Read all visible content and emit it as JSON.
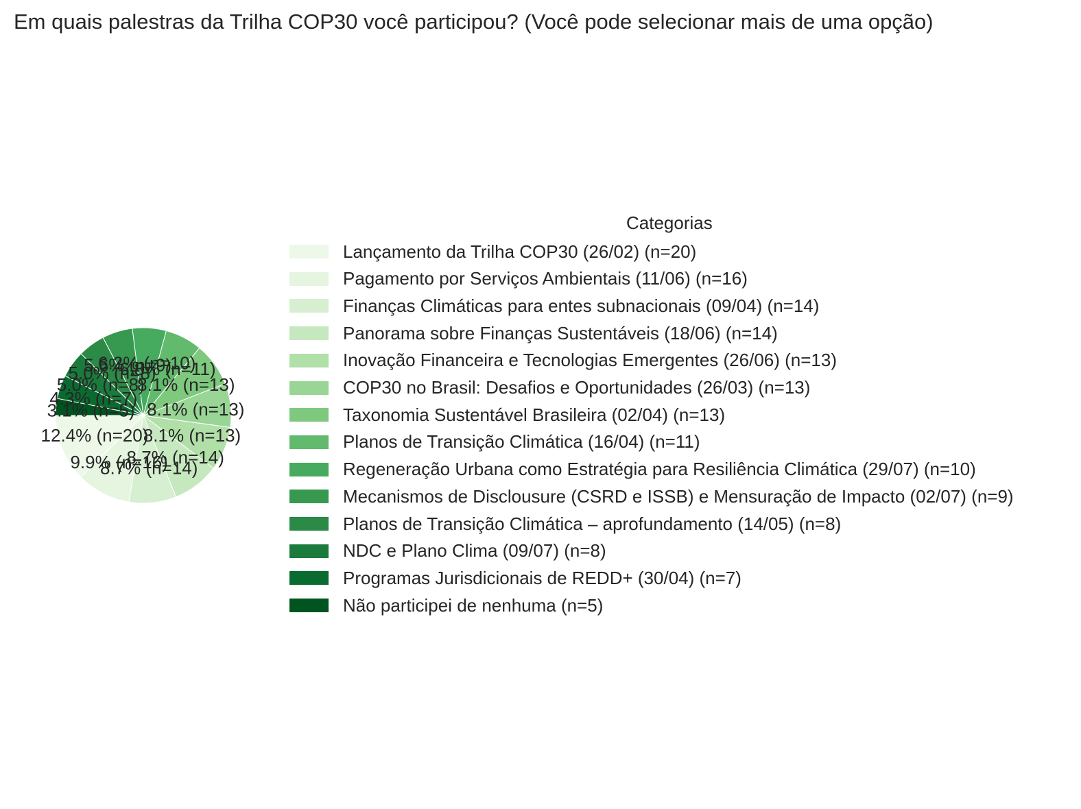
{
  "title": "Em quais palestras da Trilha COP30 você participou? (Você pode selecionar mais de uma opção)",
  "chart_data": {
    "type": "pie",
    "legend_title": "Categorias",
    "legend_position": "right",
    "start_angle": 180,
    "direction": "counterclockwise",
    "slices": [
      {
        "label": "Lançamento da Trilha COP30 (26/02) (n=20)",
        "value": 20,
        "percent_label": "12.4% (n=20)",
        "color": "#edf8e9"
      },
      {
        "label": "Pagamento por Serviços Ambientais (11/06) (n=16)",
        "value": 16,
        "percent_label": "9.9% (n=16)",
        "color": "#e5f5e0"
      },
      {
        "label": "Finanças Climáticas para entes subnacionais (09/04) (n=14)",
        "value": 14,
        "percent_label": "8.7% (n=14)",
        "color": "#d7efd1"
      },
      {
        "label": "Panorama sobre Finanças Sustentáveis (18/06) (n=14)",
        "value": 14,
        "percent_label": "8.7% (n=14)",
        "color": "#c6e8bf"
      },
      {
        "label": "Inovação Financeira e Tecnologias Emergentes (26/06) (n=13)",
        "value": 13,
        "percent_label": "8.1% (n=13)",
        "color": "#b1dfa8"
      },
      {
        "label": "COP30 no Brasil: Desafios e Oportunidades (26/03) (n=13)",
        "value": 13,
        "percent_label": "8.1% (n=13)",
        "color": "#99d595"
      },
      {
        "label": "Taxonomia Sustentável Brasileira (02/04) (n=13)",
        "value": 13,
        "percent_label": "8.1% (n=13)",
        "color": "#7fc97f"
      },
      {
        "label": "Planos de Transição Climática (16/04) (n=11)",
        "value": 11,
        "percent_label": "6.8% (n=11)",
        "color": "#62bb6d"
      },
      {
        "label": "Regeneração Urbana como Estratégia para Resiliência Climática (29/07) (n=10)",
        "value": 10,
        "percent_label": "6.2% (n=10)",
        "color": "#46ab5e"
      },
      {
        "label": "Mecanismos de Disclousure (CSRD e ISSB) e Mensuração de Impacto (02/07) (n=9)",
        "value": 9,
        "percent_label": "5.6% (n=9)",
        "color": "#37994f"
      },
      {
        "label": "Planos de Transição Climática – aprofundamento (14/05) (n=8)",
        "value": 8,
        "percent_label": "5.0% (n=8)",
        "color": "#2a8a46"
      },
      {
        "label": "NDC e Plano Clima (09/07) (n=8)",
        "value": 8,
        "percent_label": "5.0% (n=8)",
        "color": "#1a7b3c"
      },
      {
        "label": "Programas Jurisdicionais de REDD+ (30/04) (n=7)",
        "value": 7,
        "percent_label": "4.3% (n=7)",
        "color": "#0a6b31"
      },
      {
        "label": "Não participei de nenhuma (n=5)",
        "value": 5,
        "percent_label": "3.1% (n=5)",
        "color": "#00541f"
      }
    ]
  }
}
